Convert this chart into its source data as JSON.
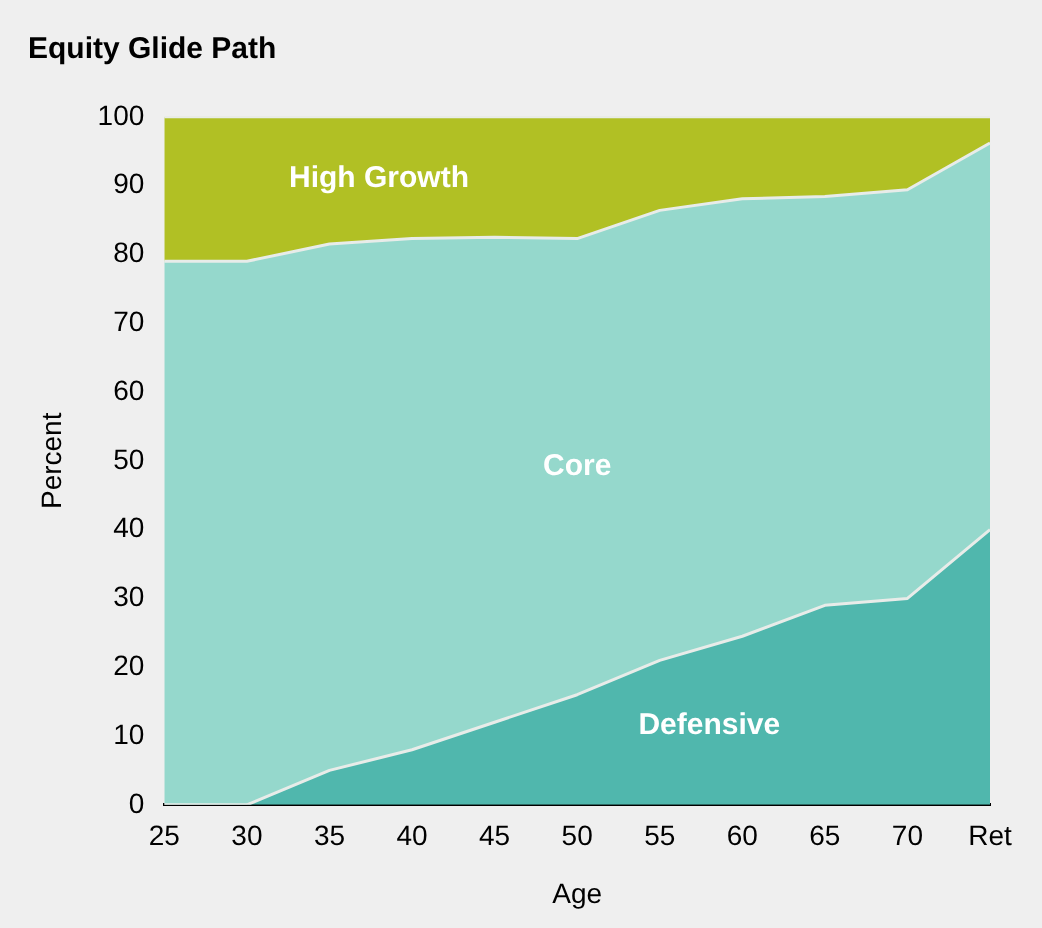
{
  "chart_data": {
    "type": "area",
    "title": "Equity Glide Path",
    "xlabel": "Age",
    "ylabel": "Percent",
    "categories": [
      "25",
      "30",
      "35",
      "40",
      "45",
      "50",
      "55",
      "60",
      "65",
      "70",
      "Ret"
    ],
    "stacked": true,
    "series": [
      {
        "name": "Defensive",
        "color": "#50b7ad",
        "values": [
          0,
          0,
          5,
          8,
          12,
          16,
          21,
          24.5,
          29,
          30,
          40
        ]
      },
      {
        "name": "Core",
        "color": "#95d8cc",
        "values": [
          79,
          79,
          76.5,
          74.3,
          70.5,
          66.3,
          65.4,
          63.6,
          59.4,
          59.4,
          56.2
        ]
      },
      {
        "name": "High Growth",
        "color": "#b1c024",
        "values": [
          21,
          21,
          18.5,
          17.7,
          17.5,
          17.7,
          13.6,
          11.9,
          11.6,
          10.6,
          3.8
        ]
      }
    ],
    "ylim": [
      0,
      100
    ],
    "yticks": [
      0,
      10,
      20,
      30,
      40,
      50,
      60,
      70,
      80,
      90,
      100
    ],
    "grid": false,
    "legend": false
  }
}
